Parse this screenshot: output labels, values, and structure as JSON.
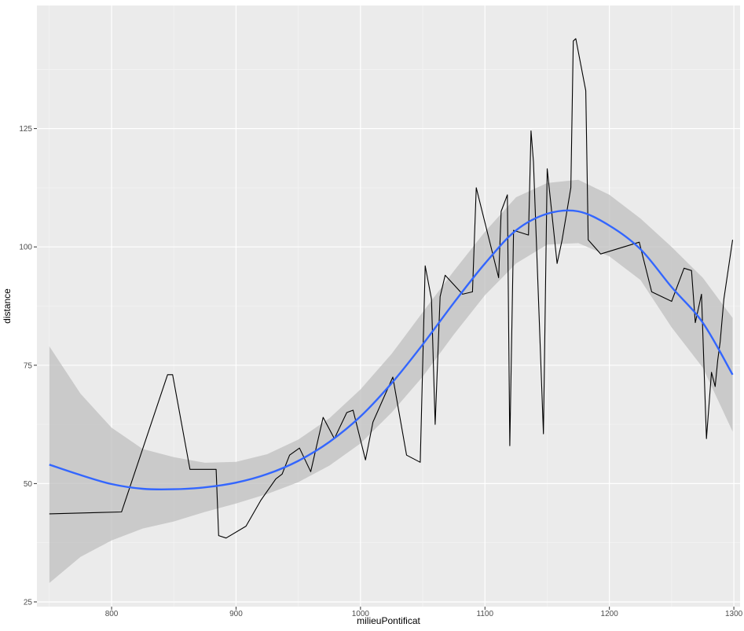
{
  "chart_data": {
    "type": "line",
    "title": "",
    "xlabel": "milieuPontificat",
    "ylabel": "distance",
    "xlim": [
      740,
      1305
    ],
    "ylim": [
      24,
      151
    ],
    "x_ticks": [
      800,
      900,
      1000,
      1100,
      1200,
      1300
    ],
    "x_tick_labels": [
      "800",
      "900",
      "1000",
      "1100",
      "1200",
      "1300"
    ],
    "y_ticks": [
      25,
      50,
      75,
      100,
      125
    ],
    "y_tick_labels": [
      "25",
      "50",
      "75",
      "100",
      "125"
    ],
    "grid": true,
    "legend": "none",
    "colors": {
      "panel_background": "#ebebeb",
      "grid_major": "#ffffff",
      "grid_minor": "#f5f5f5",
      "line": "#000000",
      "smooth": "#3366ff",
      "ribbon": "#bfbfbf"
    },
    "series": [
      {
        "kind": "line",
        "x": [
          750,
          808,
          845,
          849,
          863,
          884,
          886,
          892,
          908,
          920,
          932,
          937,
          943,
          951,
          960,
          970,
          979,
          989,
          994,
          1004,
          1010,
          1026,
          1037,
          1048,
          1052,
          1057,
          1060,
          1064,
          1068,
          1082,
          1090,
          1093,
          1111,
          1113,
          1118,
          1120,
          1123,
          1135,
          1137,
          1139,
          1147,
          1150,
          1158,
          1162,
          1169,
          1171,
          1173,
          1181,
          1183,
          1193,
          1224,
          1234,
          1250,
          1260,
          1266,
          1269,
          1274,
          1278,
          1282,
          1285,
          1287,
          1289,
          1292,
          1299
        ],
        "y": [
          43.6,
          44,
          73,
          73,
          53,
          53,
          39,
          38.5,
          41,
          46.5,
          51,
          52,
          56,
          57.5,
          52.5,
          64,
          59.5,
          65,
          65.5,
          55,
          63,
          72.5,
          56,
          54.5,
          96,
          89,
          62.5,
          89.5,
          94,
          90,
          90.5,
          112.5,
          93.5,
          107.5,
          111,
          58,
          103.5,
          102.5,
          124.5,
          118,
          60.5,
          116.5,
          96.5,
          101.5,
          112.5,
          143.5,
          144,
          133,
          101.5,
          98.5,
          101,
          90.5,
          88.5,
          95.5,
          95,
          84,
          90,
          59.5,
          73.5,
          70.5,
          76,
          80,
          89,
          101.5
        ]
      },
      {
        "kind": "smooth",
        "x": [
          750,
          775,
          800,
          825,
          850,
          875,
          900,
          925,
          950,
          975,
          1000,
          1025,
          1050,
          1075,
          1100,
          1125,
          1150,
          1175,
          1200,
          1225,
          1250,
          1275,
          1299
        ],
        "y": [
          54,
          51.8,
          49.9,
          48.9,
          48.8,
          49.2,
          50.2,
          52,
          54.8,
          58.8,
          64.2,
          71.2,
          79.4,
          88.2,
          96.5,
          103.5,
          107,
          107.5,
          104.5,
          99.5,
          91.5,
          84,
          73
        ],
        "lower": [
          29,
          34.5,
          38,
          40.5,
          42,
          44,
          45.8,
          47.8,
          50.3,
          53.8,
          58.5,
          65,
          72.6,
          81.5,
          89.8,
          96.5,
          100.5,
          100.8,
          98,
          93,
          83,
          74.5,
          61
        ],
        "upper": [
          79,
          69,
          61.8,
          57.3,
          55.6,
          54.4,
          54.6,
          56.2,
          59.3,
          63.8,
          69.9,
          77.4,
          86.2,
          94.9,
          103.2,
          110.5,
          113.5,
          114.2,
          111,
          106,
          100,
          93.5,
          85
        ]
      }
    ]
  }
}
